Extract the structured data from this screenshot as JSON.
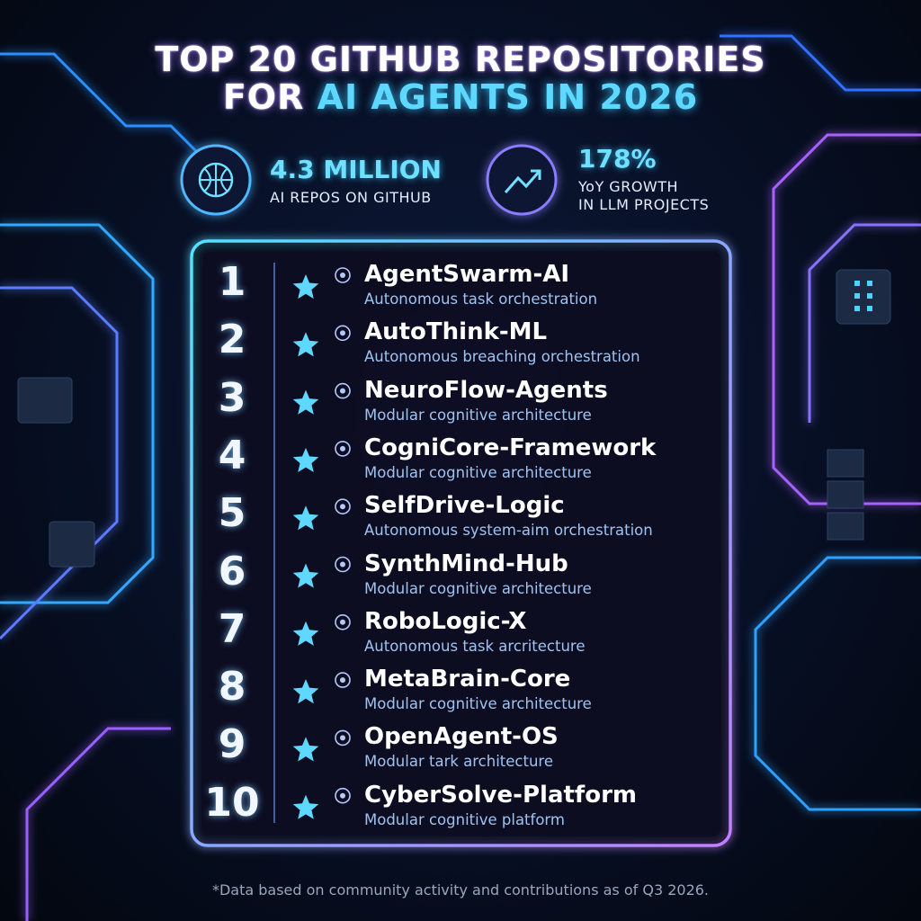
{
  "header": {
    "title_line1": "TOP 20 GITHUB REPOSITORIES",
    "title_line2_prefix": "FOR",
    "title_line2_highlight": "AI AGENTS IN 2026"
  },
  "stats": [
    {
      "value": "4.3 MILLION",
      "lines": [
        "AI REPOS ON GITHUB"
      ]
    },
    {
      "value": "178%",
      "lines": [
        "YoY GROWTH",
        "IN LLM PROJECTS"
      ]
    }
  ],
  "repositories": [
    {
      "rank": "1",
      "name": "AgentSwarm-AI",
      "description": "Autonomous task orchestration"
    },
    {
      "rank": "2",
      "name": "AutoThink-ML",
      "description": "Autonomous breaching orchestration"
    },
    {
      "rank": "3",
      "name": "NeuroFlow-Agents",
      "description": "Modular cognitive architecture"
    },
    {
      "rank": "4",
      "name": "CogniCore-Framework",
      "description": "Modular cognitive architecture"
    },
    {
      "rank": "5",
      "name": "SelfDrive-Logic",
      "description": "Autonomous system-aim orchestration"
    },
    {
      "rank": "6",
      "name": "SynthMind-Hub",
      "description": "Modular cognitive architecture"
    },
    {
      "rank": "7",
      "name": "RoboLogic-X",
      "description": "Autonomous task arcritecture"
    },
    {
      "rank": "8",
      "name": "MetaBrain-Core",
      "description": "Modular cognitive architecture"
    },
    {
      "rank": "9",
      "name": "OpenAgent-OS",
      "description": "Modular tark architecture"
    },
    {
      "rank": "10",
      "name": "CyberSolve-Platform",
      "description": "Modular cognitive platform"
    }
  ],
  "footer": "*Data based on community activity and contributions as of Q3 2026."
}
